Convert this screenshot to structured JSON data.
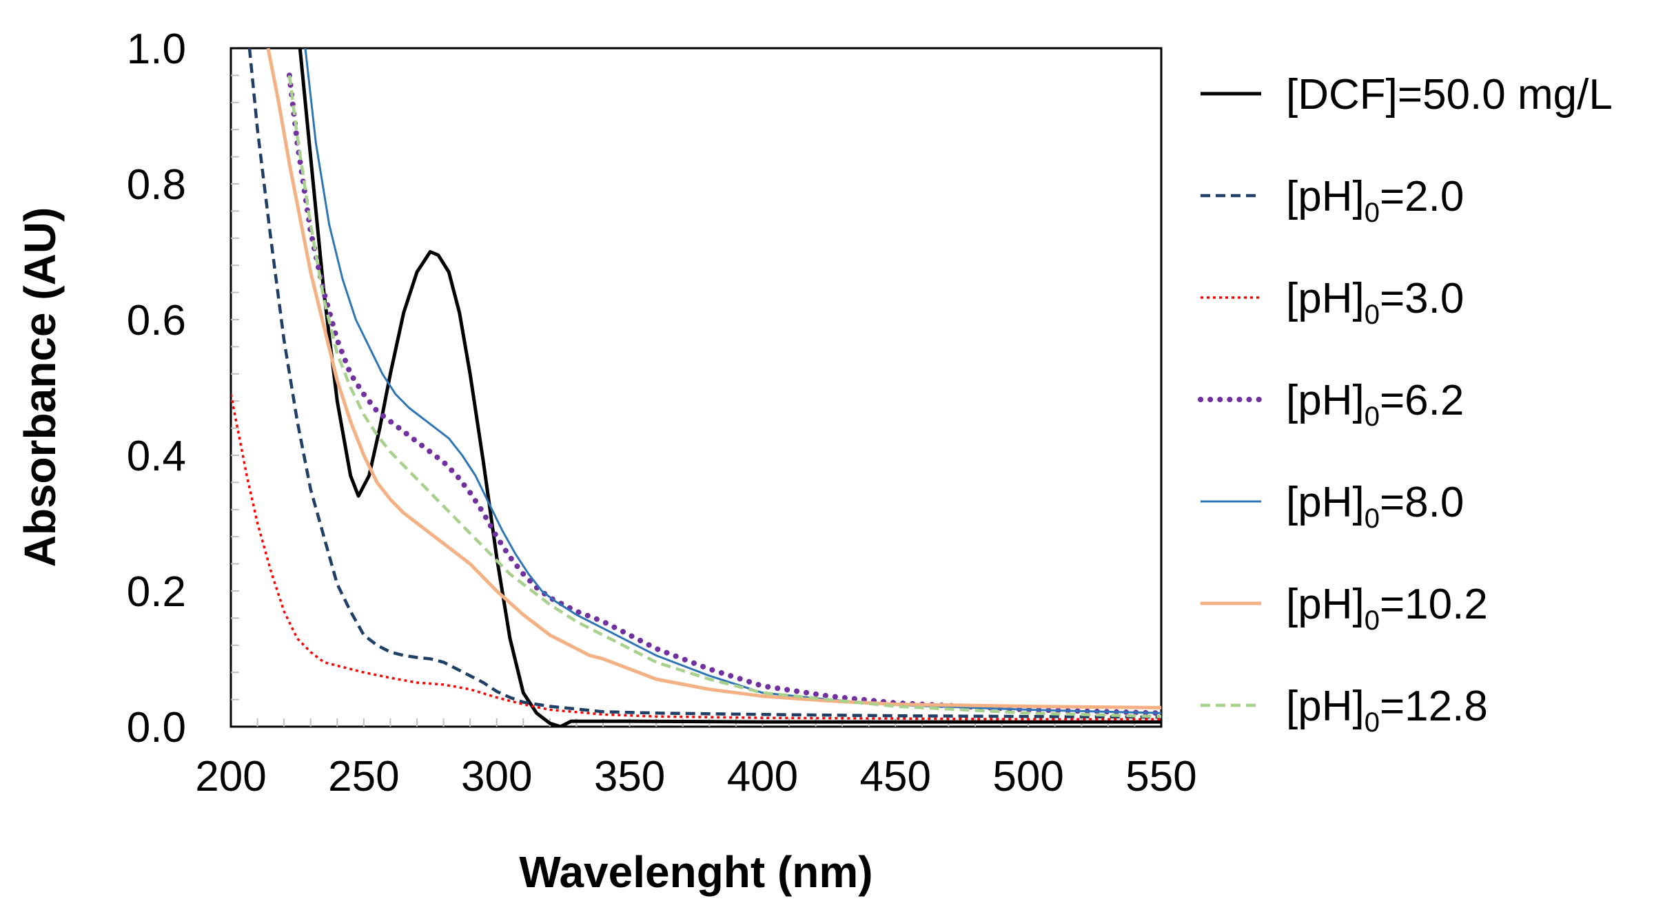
{
  "chart_data": {
    "type": "line",
    "title": "",
    "xlabel": "Wavelenght (nm)",
    "ylabel": "Absorbance (AU)",
    "xlim": [
      200,
      550
    ],
    "ylim": [
      0,
      1.0
    ],
    "x_ticks": [
      "200",
      "250",
      "300",
      "350",
      "400",
      "450",
      "500",
      "550"
    ],
    "y_ticks": [
      "0.0",
      "0.2",
      "0.4",
      "0.6",
      "0.8",
      "1.0"
    ],
    "grid": false,
    "legend_position": "right",
    "series": [
      {
        "name": "[DCF]=50.0 mg/L",
        "legend_main": "[DCF]=50.0 mg/L",
        "legend_sub": "",
        "legend_tail": "",
        "color": "#000000",
        "style": "solid",
        "x": [
          226,
          230,
          235,
          240,
          245,
          248,
          252,
          256,
          260,
          265,
          270,
          275,
          278,
          282,
          286,
          290,
          295,
          300,
          305,
          310,
          315,
          320,
          324,
          328,
          335,
          350,
          400,
          450,
          500,
          550
        ],
        "y": [
          1.0,
          0.84,
          0.64,
          0.48,
          0.37,
          0.34,
          0.37,
          0.44,
          0.52,
          0.61,
          0.67,
          0.7,
          0.695,
          0.67,
          0.61,
          0.52,
          0.39,
          0.25,
          0.13,
          0.05,
          0.02,
          0.005,
          0.0,
          0.008,
          0.008,
          0.008,
          0.007,
          0.007,
          0.007,
          0.007
        ]
      },
      {
        "name": "[pH]0=2.0",
        "legend_main": "[pH]",
        "legend_sub": "0",
        "legend_tail": "=2.0",
        "color": "#1f3f66",
        "style": "dashed",
        "x": [
          207,
          210,
          215,
          220,
          225,
          230,
          235,
          240,
          245,
          250,
          255,
          260,
          265,
          270,
          275,
          280,
          285,
          290,
          295,
          300,
          305,
          310,
          320,
          340,
          360,
          400,
          450,
          500,
          550
        ],
        "y": [
          1.0,
          0.88,
          0.72,
          0.57,
          0.45,
          0.35,
          0.28,
          0.21,
          0.17,
          0.135,
          0.12,
          0.11,
          0.105,
          0.102,
          0.1,
          0.095,
          0.085,
          0.075,
          0.065,
          0.052,
          0.043,
          0.036,
          0.03,
          0.022,
          0.02,
          0.018,
          0.016,
          0.015,
          0.014
        ]
      },
      {
        "name": "[pH]0=3.0",
        "legend_main": "[pH]",
        "legend_sub": "0",
        "legend_tail": "=3.0",
        "color": "#ff0000",
        "style": "dotted",
        "x": [
          200,
          203,
          206,
          210,
          215,
          220,
          225,
          230,
          235,
          240,
          245,
          250,
          260,
          270,
          280,
          290,
          300,
          310,
          320,
          340,
          360,
          400,
          450,
          500,
          550
        ],
        "y": [
          0.49,
          0.43,
          0.37,
          0.3,
          0.23,
          0.17,
          0.13,
          0.11,
          0.095,
          0.09,
          0.085,
          0.08,
          0.072,
          0.065,
          0.062,
          0.055,
          0.043,
          0.033,
          0.025,
          0.018,
          0.015,
          0.013,
          0.012,
          0.011,
          0.011
        ]
      },
      {
        "name": "[pH]0=6.2",
        "legend_main": "[pH]",
        "legend_sub": "0",
        "legend_tail": "=6.2",
        "color": "#7030a0",
        "style": "dots",
        "x": [
          222,
          225,
          230,
          235,
          240,
          245,
          250,
          255,
          260,
          265,
          270,
          275,
          280,
          285,
          290,
          295,
          300,
          305,
          310,
          315,
          320,
          330,
          340,
          350,
          360,
          380,
          400,
          425,
          450,
          500,
          550
        ],
        "y": [
          0.96,
          0.86,
          0.73,
          0.64,
          0.57,
          0.52,
          0.49,
          0.465,
          0.45,
          0.435,
          0.42,
          0.405,
          0.39,
          0.37,
          0.345,
          0.315,
          0.28,
          0.25,
          0.225,
          0.205,
          0.19,
          0.17,
          0.155,
          0.135,
          0.115,
          0.085,
          0.06,
          0.045,
          0.035,
          0.025,
          0.02
        ]
      },
      {
        "name": "[pH]0=8.0",
        "legend_main": "[pH]",
        "legend_sub": "0",
        "legend_tail": "=8.0",
        "color": "#2e75b6",
        "style": "thin",
        "x": [
          228,
          232,
          237,
          242,
          247,
          252,
          257,
          262,
          267,
          272,
          277,
          282,
          287,
          292,
          297,
          302,
          307,
          312,
          317,
          322,
          330,
          340,
          350,
          360,
          380,
          400,
          425,
          450,
          500,
          550
        ],
        "y": [
          1.0,
          0.86,
          0.74,
          0.66,
          0.6,
          0.56,
          0.52,
          0.49,
          0.47,
          0.455,
          0.44,
          0.425,
          0.4,
          0.37,
          0.33,
          0.29,
          0.255,
          0.225,
          0.2,
          0.185,
          0.165,
          0.145,
          0.125,
          0.105,
          0.075,
          0.05,
          0.04,
          0.032,
          0.025,
          0.02
        ]
      },
      {
        "name": "[pH]0=10.2",
        "legend_main": "[pH]",
        "legend_sub": "0",
        "legend_tail": "=10.2",
        "color": "#f4b183",
        "style": "solid",
        "x": [
          214,
          218,
          222,
          226,
          230,
          235,
          240,
          245,
          250,
          255,
          260,
          265,
          270,
          275,
          280,
          290,
          300,
          310,
          320,
          330,
          335,
          340,
          350,
          360,
          380,
          400,
          425,
          450,
          500,
          550
        ],
        "y": [
          1.0,
          0.92,
          0.83,
          0.75,
          0.67,
          0.59,
          0.51,
          0.45,
          0.4,
          0.36,
          0.335,
          0.315,
          0.3,
          0.285,
          0.27,
          0.24,
          0.2,
          0.165,
          0.135,
          0.115,
          0.105,
          0.1,
          0.085,
          0.07,
          0.055,
          0.045,
          0.038,
          0.033,
          0.03,
          0.028
        ]
      },
      {
        "name": "[pH]0=12.8",
        "legend_main": "[pH]",
        "legend_sub": "0",
        "legend_tail": "=12.8",
        "color": "#a9d18e",
        "style": "dashed",
        "x": [
          222,
          225,
          230,
          235,
          240,
          245,
          250,
          255,
          260,
          265,
          270,
          275,
          280,
          285,
          290,
          295,
          300,
          305,
          310,
          320,
          330,
          340,
          350,
          360,
          380,
          400,
          425,
          450,
          500,
          550
        ],
        "y": [
          0.96,
          0.87,
          0.74,
          0.63,
          0.55,
          0.5,
          0.46,
          0.43,
          0.405,
          0.385,
          0.365,
          0.345,
          0.325,
          0.305,
          0.285,
          0.265,
          0.245,
          0.225,
          0.21,
          0.18,
          0.155,
          0.135,
          0.115,
          0.095,
          0.07,
          0.05,
          0.04,
          0.03,
          0.02,
          0.015
        ]
      }
    ]
  }
}
